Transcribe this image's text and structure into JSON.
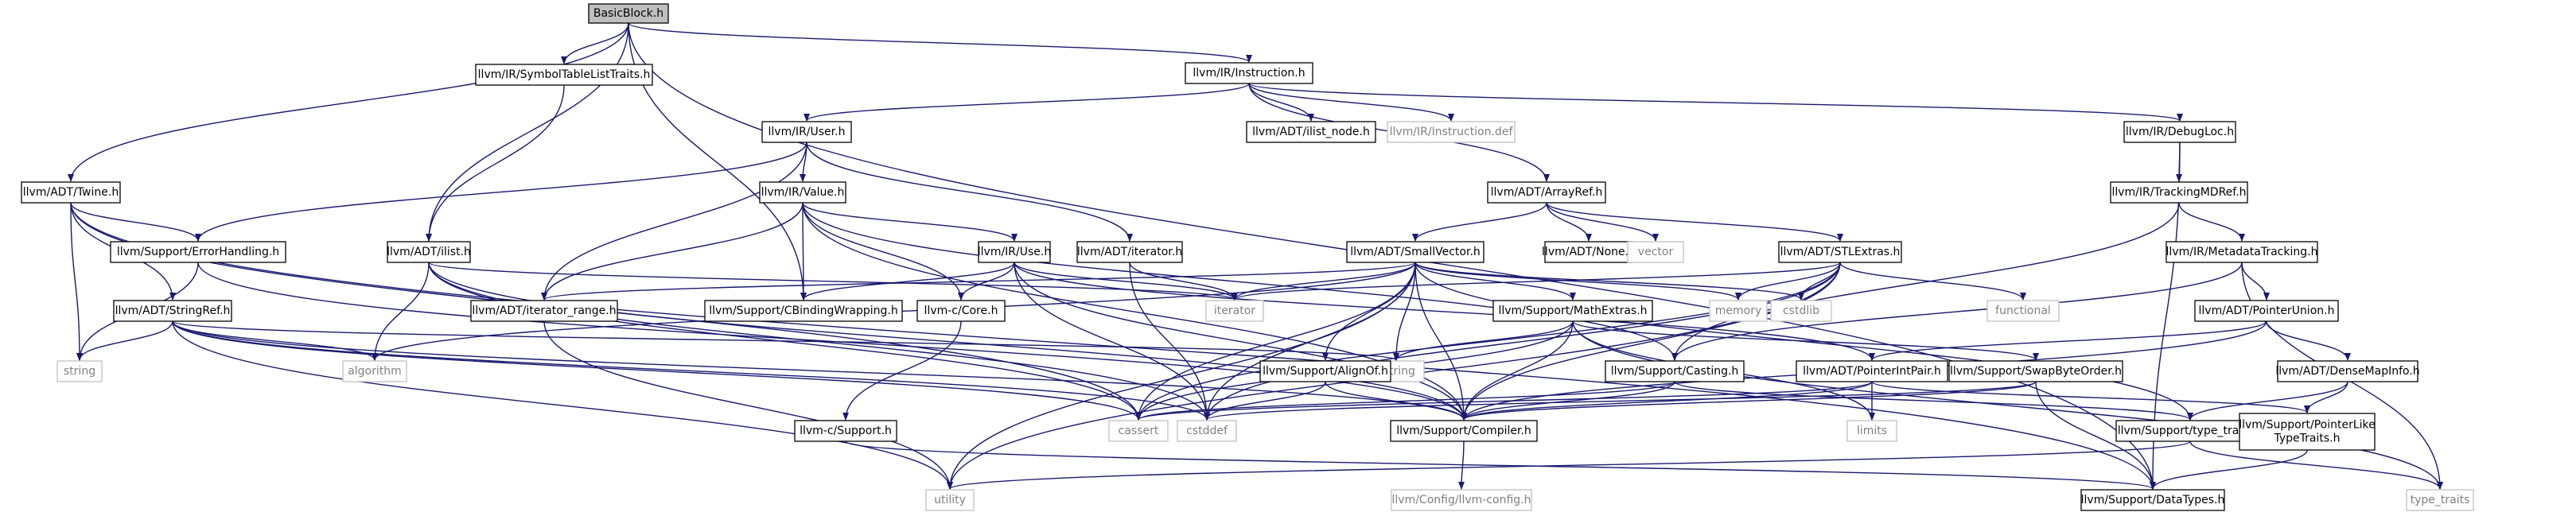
{
  "graph": {
    "title": "BasicBlock.h",
    "colors": {
      "root_fill": "#bfbfbf",
      "node_fill": "#ffffff",
      "node_border": "#000000",
      "external_border": "#bfbfbf",
      "external_text": "#808080",
      "edge": "#191970",
      "text": "#000000"
    },
    "nodes": [
      {
        "id": "basicblock",
        "label": "BasicBlock.h",
        "kind": "root"
      },
      {
        "id": "symtab",
        "label": "llvm/IR/SymbolTableListTraits.h",
        "kind": "file"
      },
      {
        "id": "instruction",
        "label": "llvm/IR/Instruction.h",
        "kind": "file"
      },
      {
        "id": "twine",
        "label": "llvm/ADT/Twine.h",
        "kind": "file"
      },
      {
        "id": "user",
        "label": "llvm/IR/User.h",
        "kind": "file"
      },
      {
        "id": "ilist_node",
        "label": "llvm/ADT/ilist_node.h",
        "kind": "file"
      },
      {
        "id": "instdef",
        "label": "llvm/IR/Instruction.def",
        "kind": "external"
      },
      {
        "id": "debugloc",
        "label": "llvm/IR/DebugLoc.h",
        "kind": "file"
      },
      {
        "id": "value",
        "label": "llvm/IR/Value.h",
        "kind": "file"
      },
      {
        "id": "arrayref",
        "label": "llvm/ADT/ArrayRef.h",
        "kind": "file"
      },
      {
        "id": "trackingmdref",
        "label": "llvm/IR/TrackingMDRef.h",
        "kind": "file"
      },
      {
        "id": "errorhandling",
        "label": "llvm/Support/ErrorHandling.h",
        "kind": "file"
      },
      {
        "id": "ilist",
        "label": "llvm/ADT/ilist.h",
        "kind": "file"
      },
      {
        "id": "use",
        "label": "llvm/IR/Use.h",
        "kind": "file"
      },
      {
        "id": "adtiterator",
        "label": "llvm/ADT/iterator.h",
        "kind": "file"
      },
      {
        "id": "smallvector",
        "label": "llvm/ADT/SmallVector.h",
        "kind": "file"
      },
      {
        "id": "none",
        "label": "llvm/ADT/None.h",
        "kind": "file"
      },
      {
        "id": "vector",
        "label": "vector",
        "kind": "external"
      },
      {
        "id": "stlextras",
        "label": "llvm/ADT/STLExtras.h",
        "kind": "file"
      },
      {
        "id": "metadatatracking",
        "label": "llvm/IR/MetadataTracking.h",
        "kind": "file"
      },
      {
        "id": "stringref",
        "label": "llvm/ADT/StringRef.h",
        "kind": "file"
      },
      {
        "id": "iterator_range",
        "label": "llvm/ADT/iterator_range.h",
        "kind": "file"
      },
      {
        "id": "cbindingwrapping",
        "label": "llvm/Support/CBindingWrapping.h",
        "kind": "file"
      },
      {
        "id": "ccore",
        "label": "llvm-c/Core.h",
        "kind": "file"
      },
      {
        "id": "iterator_ext",
        "label": "iterator",
        "kind": "external"
      },
      {
        "id": "mathextras",
        "label": "llvm/Support/MathExtras.h",
        "kind": "file"
      },
      {
        "id": "memory",
        "label": "memory",
        "kind": "external"
      },
      {
        "id": "cstdlib",
        "label": "cstdlib",
        "kind": "external"
      },
      {
        "id": "functional",
        "label": "functional",
        "kind": "external"
      },
      {
        "id": "pointerunion",
        "label": "llvm/ADT/PointerUnion.h",
        "kind": "file"
      },
      {
        "id": "string",
        "label": "string",
        "kind": "external"
      },
      {
        "id": "algorithm",
        "label": "algorithm",
        "kind": "external"
      },
      {
        "id": "cstring",
        "label": "cstring",
        "kind": "external"
      },
      {
        "id": "casting",
        "label": "llvm/Support/Casting.h",
        "kind": "file"
      },
      {
        "id": "alignof",
        "label": "llvm/Support/AlignOf.h",
        "kind": "file"
      },
      {
        "id": "pointerintpair",
        "label": "llvm/ADT/PointerIntPair.h",
        "kind": "file"
      },
      {
        "id": "swapbyteorder",
        "label": "llvm/Support/SwapByteOrder.h",
        "kind": "file"
      },
      {
        "id": "densemapinfo",
        "label": "llvm/ADT/DenseMapInfo.h",
        "kind": "file"
      },
      {
        "id": "cassert",
        "label": "cassert",
        "kind": "external"
      },
      {
        "id": "cstddef",
        "label": "cstddef",
        "kind": "external"
      },
      {
        "id": "compiler",
        "label": "llvm/Support/Compiler.h",
        "kind": "file"
      },
      {
        "id": "limits",
        "label": "limits",
        "kind": "external"
      },
      {
        "id": "csupport",
        "label": "llvm-c/Support.h",
        "kind": "file"
      },
      {
        "id": "typetraits",
        "label": "llvm/Support/type_traits.h",
        "kind": "file"
      },
      {
        "id": "pointerliketypetraits",
        "label": [
          "llvm/Support/PointerLike",
          "TypeTraits.h"
        ],
        "kind": "file"
      },
      {
        "id": "utility",
        "label": "utility",
        "kind": "external"
      },
      {
        "id": "llvmconfig",
        "label": "llvm/Config/llvm-config.h",
        "kind": "external"
      },
      {
        "id": "datatypes",
        "label": "llvm/Support/DataTypes.h",
        "kind": "file"
      },
      {
        "id": "type_traits_ext",
        "label": "type_traits",
        "kind": "external"
      }
    ],
    "edges": [
      [
        "basicblock",
        "symtab"
      ],
      [
        "basicblock",
        "instruction"
      ],
      [
        "basicblock",
        "twine"
      ],
      [
        "basicblock",
        "ilist"
      ],
      [
        "basicblock",
        "cbindingwrapping"
      ],
      [
        "basicblock",
        "datatypes"
      ],
      [
        "symtab",
        "ilist"
      ],
      [
        "instruction",
        "user"
      ],
      [
        "instruction",
        "ilist_node"
      ],
      [
        "instruction",
        "instdef"
      ],
      [
        "instruction",
        "debugloc"
      ],
      [
        "instruction",
        "arrayref"
      ],
      [
        "twine",
        "errorhandling"
      ],
      [
        "twine",
        "stringref"
      ],
      [
        "twine",
        "string"
      ],
      [
        "twine",
        "cassert"
      ],
      [
        "twine",
        "datatypes"
      ],
      [
        "user",
        "value"
      ],
      [
        "user",
        "errorhandling"
      ],
      [
        "user",
        "iterator_range"
      ],
      [
        "user",
        "adtiterator"
      ],
      [
        "debugloc",
        "trackingmdref"
      ],
      [
        "debugloc",
        "datatypes"
      ],
      [
        "value",
        "use"
      ],
      [
        "value",
        "iterator_range"
      ],
      [
        "value",
        "cbindingwrapping"
      ],
      [
        "value",
        "ccore"
      ],
      [
        "value",
        "casting"
      ],
      [
        "value",
        "compiler"
      ],
      [
        "arrayref",
        "smallvector"
      ],
      [
        "arrayref",
        "none"
      ],
      [
        "arrayref",
        "vector"
      ],
      [
        "arrayref",
        "stlextras"
      ],
      [
        "trackingmdref",
        "metadatatracking"
      ],
      [
        "trackingmdref",
        "casting"
      ],
      [
        "errorhandling",
        "string"
      ],
      [
        "errorhandling",
        "compiler"
      ],
      [
        "ilist",
        "iterator_ext"
      ],
      [
        "ilist",
        "algorithm"
      ],
      [
        "ilist",
        "cassert"
      ],
      [
        "ilist",
        "cstddef"
      ],
      [
        "ilist",
        "compiler"
      ],
      [
        "use",
        "cbindingwrapping"
      ],
      [
        "use",
        "ccore"
      ],
      [
        "use",
        "pointerintpair"
      ],
      [
        "use",
        "compiler"
      ],
      [
        "use",
        "cstddef"
      ],
      [
        "use",
        "iterator_ext"
      ],
      [
        "adtiterator",
        "iterator_ext"
      ],
      [
        "adtiterator",
        "cstddef"
      ],
      [
        "smallvector",
        "iterator_range"
      ],
      [
        "smallvector",
        "alignof"
      ],
      [
        "smallvector",
        "compiler"
      ],
      [
        "smallvector",
        "mathextras"
      ],
      [
        "smallvector",
        "typetraits"
      ],
      [
        "smallvector",
        "algorithm"
      ],
      [
        "smallvector",
        "cassert"
      ],
      [
        "smallvector",
        "cstddef"
      ],
      [
        "smallvector",
        "cstdlib"
      ],
      [
        "smallvector",
        "cstring"
      ],
      [
        "smallvector",
        "iterator_ext"
      ],
      [
        "smallvector",
        "memory"
      ],
      [
        "smallvector",
        "utility"
      ],
      [
        "stlextras",
        "compiler"
      ],
      [
        "stlextras",
        "iterator_ext"
      ],
      [
        "stlextras",
        "memory"
      ],
      [
        "stlextras",
        "cstdlib"
      ],
      [
        "stlextras",
        "functional"
      ],
      [
        "stlextras",
        "cassert"
      ],
      [
        "stlextras",
        "cstddef"
      ],
      [
        "stlextras",
        "utility"
      ],
      [
        "metadatatracking",
        "pointerunion"
      ],
      [
        "metadatatracking",
        "casting"
      ],
      [
        "metadatatracking",
        "type_traits_ext"
      ],
      [
        "stringref",
        "algorithm"
      ],
      [
        "stringref",
        "cstring"
      ],
      [
        "stringref",
        "string"
      ],
      [
        "stringref",
        "utility"
      ],
      [
        "stringref",
        "compiler"
      ],
      [
        "stringref",
        "cassert"
      ],
      [
        "stringref",
        "cstddef"
      ],
      [
        "iterator_range",
        "utility"
      ],
      [
        "ccore",
        "csupport"
      ],
      [
        "mathextras",
        "compiler"
      ],
      [
        "mathextras",
        "swapbyteorder"
      ],
      [
        "mathextras",
        "cassert"
      ],
      [
        "mathextras",
        "cstring"
      ],
      [
        "mathextras",
        "type_traits_ext"
      ],
      [
        "mathextras",
        "limits"
      ],
      [
        "pointerunion",
        "pointerintpair"
      ],
      [
        "pointerunion",
        "densemapinfo"
      ],
      [
        "pointerunion",
        "compiler"
      ],
      [
        "casting",
        "typetraits"
      ],
      [
        "casting",
        "compiler"
      ],
      [
        "casting",
        "cassert"
      ],
      [
        "alignof",
        "compiler"
      ],
      [
        "alignof",
        "cstddef"
      ],
      [
        "pointerintpair",
        "pointerliketypetraits"
      ],
      [
        "pointerintpair",
        "compiler"
      ],
      [
        "pointerintpair",
        "cassert"
      ],
      [
        "pointerintpair",
        "limits"
      ],
      [
        "swapbyteorder",
        "compiler"
      ],
      [
        "swapbyteorder",
        "datatypes"
      ],
      [
        "swapbyteorder",
        "cstddef"
      ],
      [
        "densemapinfo",
        "pointerliketypetraits"
      ],
      [
        "densemapinfo",
        "typetraits"
      ],
      [
        "compiler",
        "llvmconfig"
      ],
      [
        "csupport",
        "datatypes"
      ],
      [
        "typetraits",
        "type_traits_ext"
      ],
      [
        "typetraits",
        "utility"
      ],
      [
        "pointerliketypetraits",
        "datatypes"
      ]
    ]
  }
}
